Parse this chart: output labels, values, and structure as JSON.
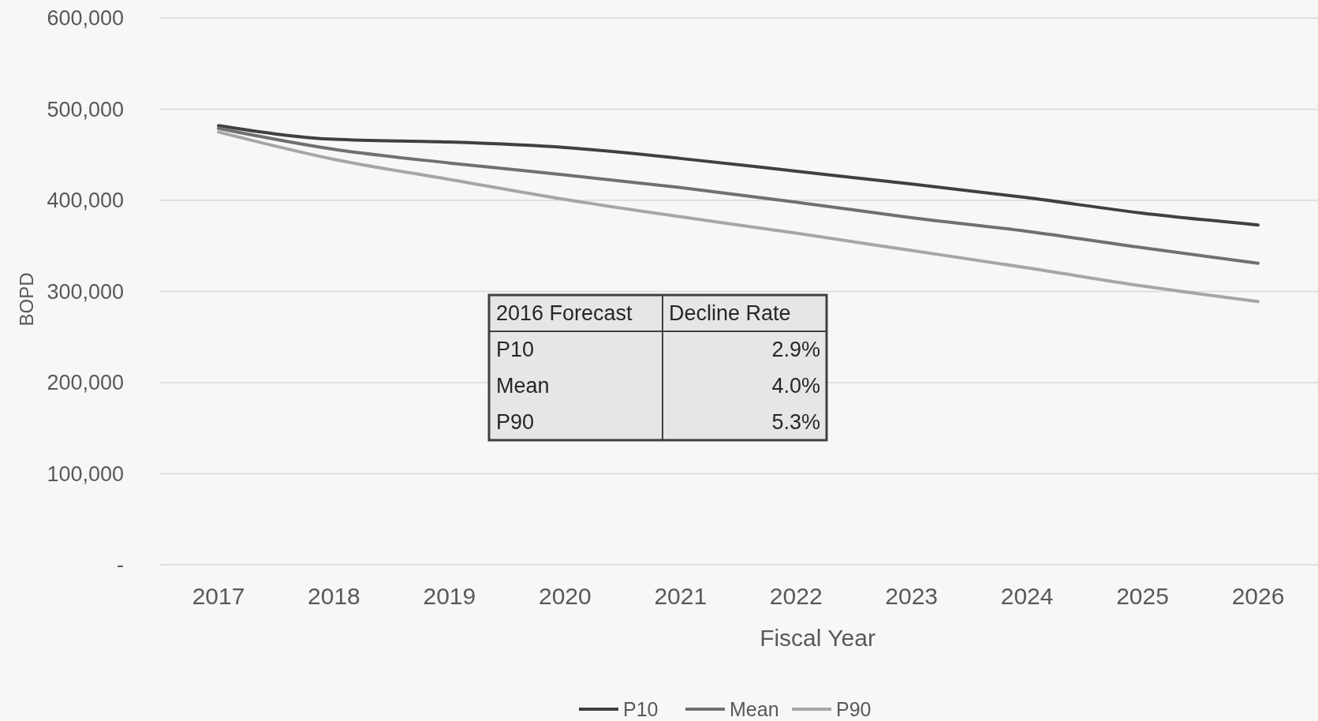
{
  "chart_data": {
    "type": "line",
    "xlabel": "Fiscal Year",
    "ylabel": "BOPD",
    "categories": [
      "2017",
      "2018",
      "2019",
      "2020",
      "2021",
      "2022",
      "2023",
      "2024",
      "2025",
      "2026"
    ],
    "series": [
      {
        "name": "P10",
        "color": "#404040",
        "values": [
          482000,
          467000,
          464000,
          458000,
          446000,
          432000,
          418000,
          403000,
          386000,
          373000
        ]
      },
      {
        "name": "Mean",
        "color": "#707070",
        "values": [
          479000,
          456000,
          441000,
          428000,
          414000,
          398000,
          381000,
          366000,
          348000,
          331000
        ]
      },
      {
        "name": "P90",
        "color": "#a6a6a6",
        "values": [
          475000,
          445000,
          423000,
          401000,
          382000,
          364000,
          345000,
          326000,
          306000,
          289000
        ]
      }
    ],
    "ylim": [
      0,
      600000
    ],
    "yticks": [
      {
        "value": 0,
        "label": "-"
      },
      {
        "value": 100000,
        "label": "100,000"
      },
      {
        "value": 200000,
        "label": "200,000"
      },
      {
        "value": 300000,
        "label": "300,000"
      },
      {
        "value": 400000,
        "label": "400,000"
      },
      {
        "value": 500000,
        "label": "500,000"
      },
      {
        "value": 600000,
        "label": "600,000"
      }
    ],
    "grid": "y",
    "legend": "bottom",
    "marker": "none",
    "line_style": "solid",
    "annotations": [
      "2016 Forecast",
      "Decline Rate",
      "P10",
      "2.9%",
      "Mean",
      "4.0%",
      "P90",
      "5.3%"
    ]
  }
}
